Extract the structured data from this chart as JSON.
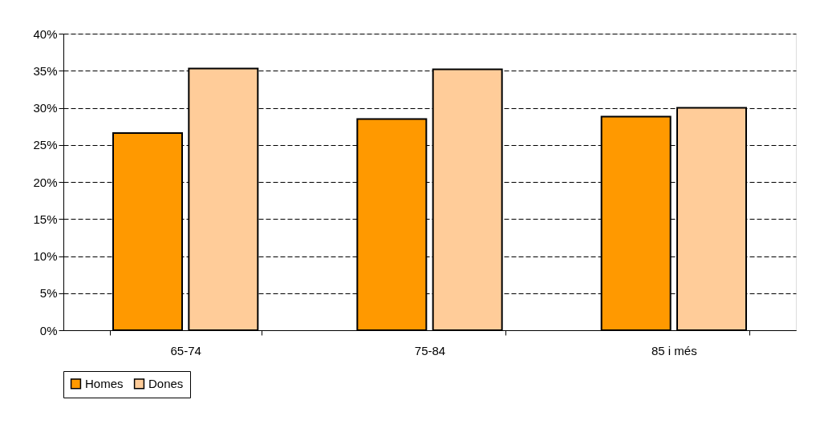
{
  "chart_data": {
    "type": "bar",
    "categories": [
      "65-74",
      "75-84",
      "85 i més"
    ],
    "series": [
      {
        "name": "Homes",
        "color": "#ff9900",
        "values": [
          26.6,
          28.5,
          28.8
        ]
      },
      {
        "name": "Dones",
        "color": "#ffcc99",
        "values": [
          35.3,
          35.2,
          30.0
        ]
      }
    ],
    "ylim": [
      0,
      40
    ],
    "yticks": [
      {
        "value": 0,
        "label": "0%"
      },
      {
        "value": 5,
        "label": "5%"
      },
      {
        "value": 10,
        "label": "10%"
      },
      {
        "value": 15,
        "label": "15%"
      },
      {
        "value": 20,
        "label": "20%"
      },
      {
        "value": 25,
        "label": "25%"
      },
      {
        "value": 30,
        "label": "30%"
      },
      {
        "value": 35,
        "label": "35%"
      },
      {
        "value": 40,
        "label": "40%"
      }
    ],
    "grid": "y",
    "legend": "bottom"
  }
}
